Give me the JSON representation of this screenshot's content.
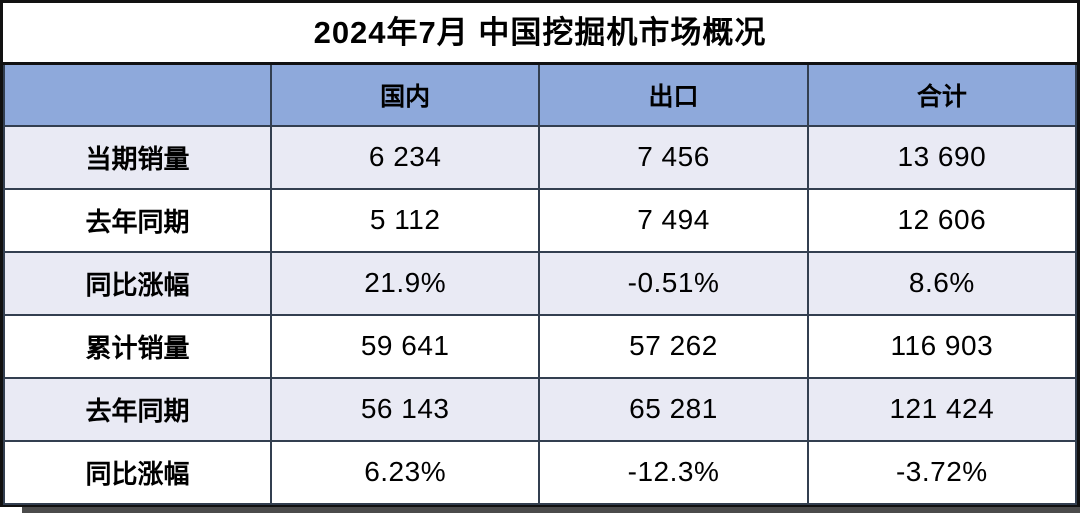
{
  "title": "2024年7月 中国挖掘机市场概况",
  "chart_data": {
    "type": "table",
    "title": "2024年7月 中国挖掘机市场概况",
    "columns": [
      "",
      "国内",
      "出口",
      "合计"
    ],
    "rows": [
      {
        "label": "当期销量",
        "values": [
          "6 234",
          "7 456",
          "13 690"
        ]
      },
      {
        "label": "去年同期",
        "values": [
          "5 112",
          "7 494",
          "12 606"
        ]
      },
      {
        "label": "同比涨幅",
        "values": [
          "21.9%",
          "-0.51%",
          "8.6%"
        ]
      },
      {
        "label": "累计销量",
        "values": [
          "59 641",
          "57 262",
          "116 903"
        ]
      },
      {
        "label": "去年同期",
        "values": [
          "56 143",
          "65 281",
          "121 424"
        ]
      },
      {
        "label": "同比涨幅",
        "values": [
          "6.23%",
          "-12.3%",
          "-3.72%"
        ]
      }
    ],
    "layout": {
      "banded_rows": [
        1,
        3,
        5
      ],
      "header_fill": "#8EA9DB",
      "band_fill": "#E9EAF4",
      "grid": true
    }
  },
  "colors": {
    "header_bg": "#8EA9DB",
    "band_bg": "#E9EAF4",
    "grid_border": "#333F50",
    "outer_border": "#111111",
    "shadow": "#4B4B4B",
    "text": "#000000"
  }
}
